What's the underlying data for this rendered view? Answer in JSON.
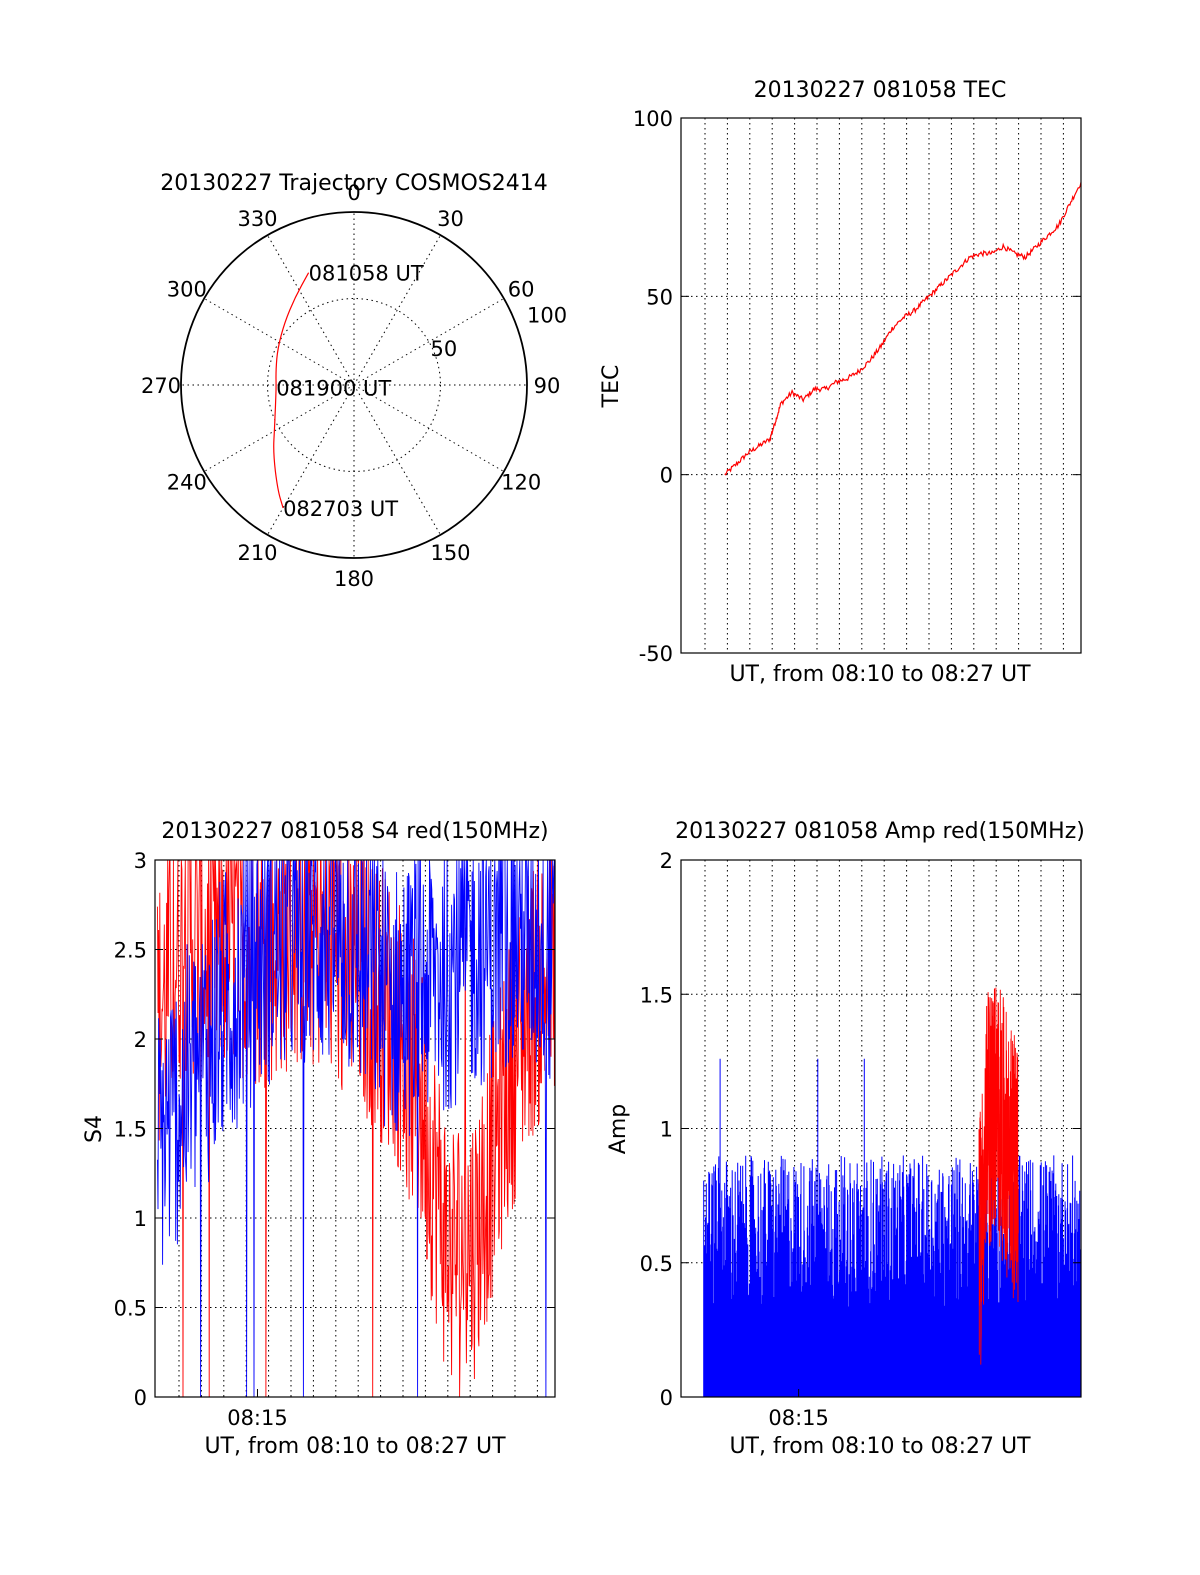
{
  "figure": {
    "background": "#ffffff"
  },
  "chart_data": [
    {
      "id": "trajectory",
      "type": "polar",
      "title": "20130227 Trajectory COSMOS2414",
      "angle_ticks": [
        "0",
        "30",
        "60",
        "90",
        "120",
        "150",
        "180",
        "210",
        "240",
        "270",
        "300",
        "330"
      ],
      "angle_values": [
        0,
        30,
        60,
        90,
        120,
        150,
        180,
        210,
        240,
        270,
        300,
        330
      ],
      "radial_ticks": [
        "50",
        "100"
      ],
      "radial_values": [
        50,
        100
      ],
      "radial_range": [
        0,
        100
      ],
      "grid": true,
      "color": "#ff0000",
      "track": {
        "azimuth_deg": [
          338,
          326,
          312,
          296,
          281,
          268,
          255,
          242,
          230,
          216,
          210
        ],
        "distance": [
          70,
          61,
          54,
          49,
          46,
          45,
          47,
          52,
          61,
          75,
          82
        ]
      },
      "annotations": [
        {
          "text": "081058 UT",
          "azimuth_deg": 338,
          "distance": 70
        },
        {
          "text": "081900 UT",
          "azimuth_deg": 268,
          "distance": 45
        },
        {
          "text": "082703 UT",
          "azimuth_deg": 210,
          "distance": 82
        }
      ]
    },
    {
      "id": "tec",
      "type": "line",
      "title": "20130227 081058 TEC",
      "xlabel": "UT, from 08:10 to 08:27 UT",
      "ylabel": "TEC",
      "ylim": [
        -50,
        100
      ],
      "yticks": [
        "-50",
        "0",
        "50",
        "100"
      ],
      "ytick_values": [
        -50,
        0,
        50,
        100
      ],
      "xlim": [
        "08:09",
        "08:27"
      ],
      "x_gridlines": [
        "08:10",
        "08:11",
        "08:12",
        "08:13",
        "08:14",
        "08:15",
        "08:16",
        "08:17",
        "08:18",
        "08:19",
        "08:20",
        "08:21",
        "08:22",
        "08:23",
        "08:24",
        "08:25",
        "08:26",
        "08:27"
      ],
      "grid": true,
      "series": [
        {
          "color": "#ff0000",
          "x": [
            "08:10:58",
            "08:11:30",
            "08:12:00",
            "08:12:30",
            "08:13:00",
            "08:13:15",
            "08:13:30",
            "08:14:00",
            "08:14:30",
            "08:15:00",
            "08:15:30",
            "08:16:00",
            "08:16:30",
            "08:17:00",
            "08:17:30",
            "08:18:00",
            "08:18:30",
            "08:19:00",
            "08:19:30",
            "08:20:00",
            "08:20:30",
            "08:21:00",
            "08:21:30",
            "08:22:00",
            "08:22:30",
            "08:23:00",
            "08:23:30",
            "08:24:00",
            "08:24:30",
            "08:25:00",
            "08:25:30",
            "08:26:00",
            "08:26:30",
            "08:27:00"
          ],
          "y": [
            0,
            3,
            6,
            8,
            10,
            15,
            20,
            23,
            21,
            24,
            24,
            26,
            27,
            29,
            32,
            36,
            41,
            44,
            46,
            49,
            52,
            55,
            58,
            61,
            62,
            62,
            64,
            62,
            61,
            64,
            67,
            70,
            76,
            82
          ]
        }
      ]
    },
    {
      "id": "s4",
      "type": "line",
      "title": "20130227 081058 S4 red(150MHz)",
      "xlabel": "UT, from 08:10 to 08:27 UT",
      "ylabel": "S4",
      "ylim": [
        0,
        3
      ],
      "yticks": [
        "0",
        "0.5",
        "1",
        "1.5",
        "2",
        "2.5",
        "3"
      ],
      "ytick_values": [
        0,
        0.5,
        1,
        1.5,
        2,
        2.5,
        3
      ],
      "xticks": [
        "08:15"
      ],
      "xtick_values": [
        "08:15"
      ],
      "xlim": [
        "08:10:52",
        "08:27"
      ],
      "grid": true,
      "series": [
        {
          "color": "#ff0000",
          "x_range": [
            "08:10:58",
            "08:27:00"
          ],
          "trend": [
            2.1,
            2.6,
            2.5,
            2.6,
            2.5,
            2.6,
            2.6,
            2.4,
            2.3,
            2.1,
            1.6,
            0.8,
            0.9,
            1.6,
            2.2,
            2.4
          ],
          "spread": 0.8
        },
        {
          "color": "#0000ff",
          "x_range": [
            "08:10:58",
            "08:27:00"
          ],
          "trend": [
            1.4,
            1.7,
            2.0,
            2.3,
            2.5,
            2.6,
            2.6,
            2.6,
            2.4,
            2.2,
            2.3,
            2.4,
            2.5,
            2.6,
            2.6,
            2.5
          ],
          "spread": 0.8
        }
      ]
    },
    {
      "id": "amp",
      "type": "line",
      "title": "20130227 081058 Amp red(150MHz)",
      "xlabel": "UT, from 08:10 to 08:27 UT",
      "ylabel": "Amp",
      "ylim": [
        0,
        2
      ],
      "yticks": [
        "0",
        "0.5",
        "1",
        "1.5",
        "2"
      ],
      "ytick_values": [
        0,
        0.5,
        1,
        1.5,
        2
      ],
      "xticks": [
        "08:15"
      ],
      "xtick_values": [
        "08:15"
      ],
      "xlim": [
        "08:10",
        "08:27"
      ],
      "grid": true,
      "series": [
        {
          "color": "#ff0000",
          "x_range": [
            "08:22:40",
            "08:24:20"
          ],
          "trend": [
            0.5,
            1.0,
            1.1,
            1.0,
            0.9,
            0.8
          ],
          "spread": 0.5
        },
        {
          "color": "#0000ff",
          "x_range": [
            "08:10:58",
            "08:27:00"
          ],
          "trend": [
            0.6,
            0.6,
            0.6,
            0.6,
            0.6,
            0.6,
            0.6,
            0.6,
            0.6,
            0.6,
            0.6,
            0.6,
            0.6,
            0.6,
            0.6,
            0.6
          ],
          "spread": 0.3
        }
      ]
    }
  ]
}
